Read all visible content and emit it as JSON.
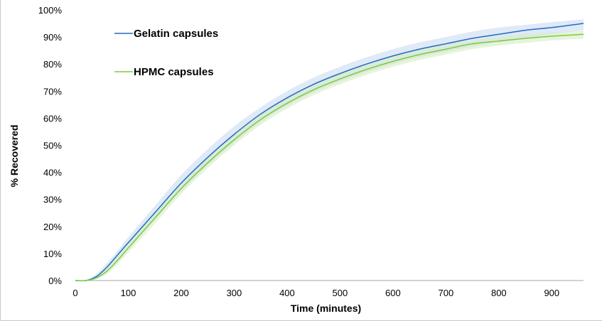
{
  "chart_data": {
    "type": "line",
    "title": "",
    "xlabel": "Time (minutes)",
    "ylabel": "% Recovered",
    "xlim": [
      0,
      960
    ],
    "ylim": [
      0,
      100
    ],
    "x_ticks": [
      "0",
      "100",
      "200",
      "300",
      "400",
      "500",
      "600",
      "700",
      "800",
      "900"
    ],
    "y_ticks": [
      "0%",
      "10%",
      "20%",
      "30%",
      "40%",
      "50%",
      "60%",
      "70%",
      "80%",
      "90%",
      "100%"
    ],
    "grid": false,
    "legend_position": "top-left",
    "x": [
      0,
      20,
      40,
      60,
      80,
      100,
      150,
      200,
      250,
      300,
      350,
      400,
      450,
      500,
      550,
      600,
      650,
      700,
      750,
      800,
      850,
      900,
      960
    ],
    "series": [
      {
        "name": "Gelatin capsules",
        "color": "#1f6fbf",
        "band_color": "#c9dbf2",
        "values": [
          0,
          0,
          1.5,
          5,
          9.5,
          14,
          25,
          36,
          45.5,
          54,
          61.5,
          67.5,
          72.5,
          76.5,
          80,
          83,
          85.5,
          87.5,
          89.5,
          91,
          92.5,
          93.5,
          95
        ],
        "upper": [
          0,
          0,
          2.5,
          6.5,
          11,
          16,
          27.5,
          39,
          48.5,
          57,
          64,
          70,
          75,
          79,
          82.5,
          85.5,
          88,
          90,
          92,
          93.5,
          94.5,
          95.5,
          96.5
        ],
        "lower": [
          0,
          0,
          0.8,
          3.8,
          8,
          12.5,
          22.5,
          33,
          42.5,
          51,
          58.5,
          64.5,
          69.5,
          73.5,
          77,
          80,
          82.5,
          84.5,
          86.5,
          88,
          89.5,
          91,
          92.5
        ]
      },
      {
        "name": "HPMC capsules",
        "color": "#7ac943",
        "band_color": "#d7edc5",
        "values": [
          0,
          0,
          1,
          3.5,
          7.5,
          12,
          23,
          34,
          43.5,
          52,
          59.5,
          65.5,
          70.5,
          74.5,
          78,
          81,
          83.5,
          85.5,
          87.5,
          88.5,
          89.5,
          90.3,
          91
        ],
        "upper": [
          0,
          0,
          1.8,
          4.8,
          9,
          13.8,
          25,
          36,
          45.5,
          54,
          61.5,
          67.5,
          72.5,
          76.5,
          80,
          82.8,
          85.2,
          87.2,
          88.8,
          90,
          91,
          91.7,
          92.3
        ],
        "lower": [
          0,
          0,
          0.5,
          2.5,
          6,
          10.3,
          21,
          32,
          41.5,
          50,
          57.5,
          63.5,
          68.5,
          72.5,
          76,
          79,
          81.5,
          83.5,
          85.5,
          86.8,
          87.8,
          88.7,
          89.4
        ]
      }
    ]
  }
}
